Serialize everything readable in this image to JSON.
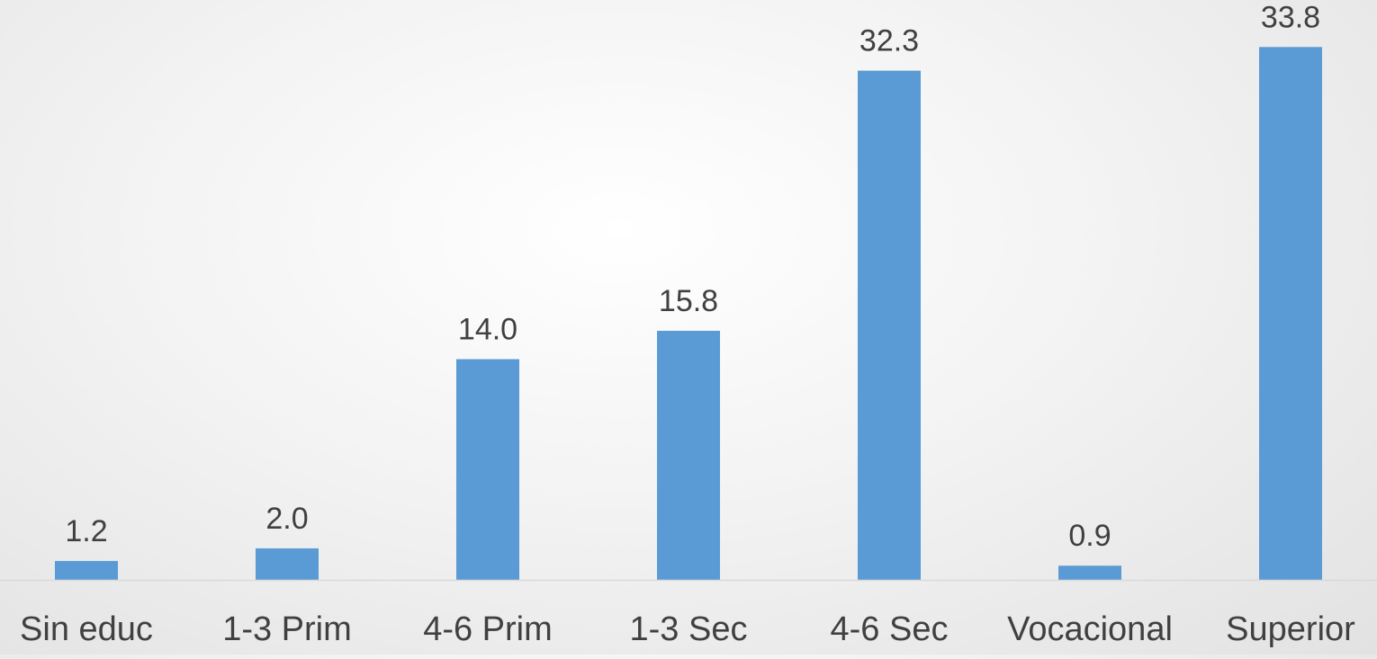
{
  "chart_data": {
    "type": "bar",
    "categories": [
      "Sin educ",
      "1-3 Prim",
      "4-6 Prim",
      "1-3 Sec",
      "4-6 Sec",
      "Vocacional",
      "Superior"
    ],
    "values": [
      1.2,
      2.0,
      14.0,
      15.8,
      32.3,
      0.9,
      33.8
    ],
    "value_labels": [
      "1.2",
      "2.0",
      "14.0",
      "15.8",
      "32.3",
      "0.9",
      "33.8"
    ],
    "ylim": [
      0,
      34.9
    ],
    "grid": false,
    "legend": "none",
    "bar_color": "#5b9bd5",
    "axis_color": "#d9d9d9",
    "text_color": "#404040"
  }
}
